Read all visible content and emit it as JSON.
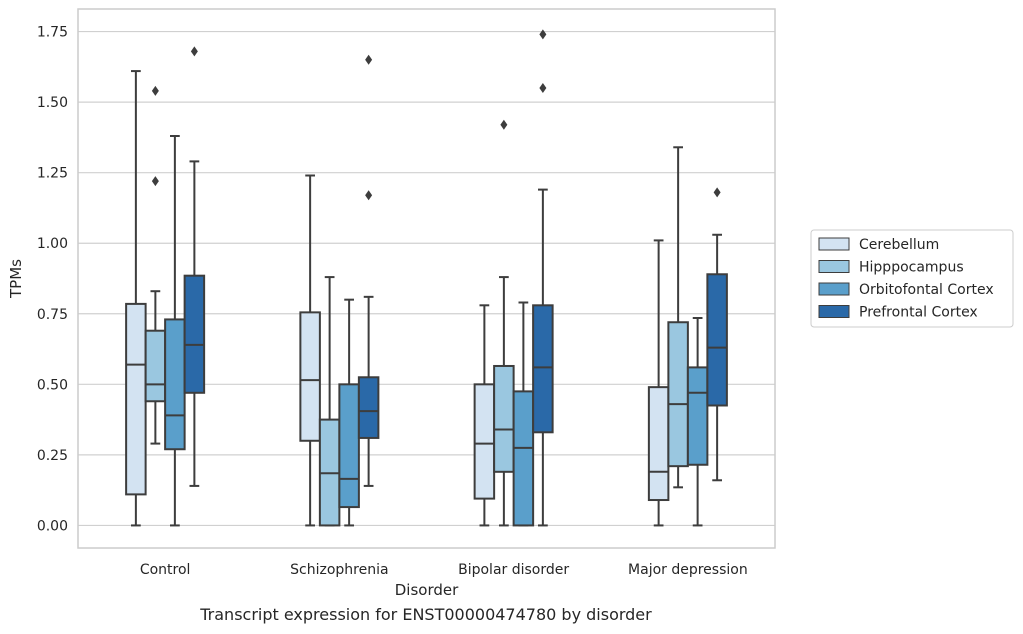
{
  "caption": "Transcript expression for ENST00000474780 by disorder",
  "chart_data": {
    "type": "box",
    "xlabel": "Disorder",
    "ylabel": "TPMs",
    "ylim": [
      -0.08,
      1.83
    ],
    "yticks": [
      0.0,
      0.25,
      0.5,
      0.75,
      1.0,
      1.25,
      1.5,
      1.75
    ],
    "ytick_labels": [
      "0.00",
      "0.25",
      "0.50",
      "0.75",
      "1.00",
      "1.25",
      "1.50",
      "1.75"
    ],
    "grid": "horizontal",
    "legend_position": "right",
    "categories": [
      "Control",
      "Schizophrenia",
      "Bipolar disorder",
      "Major depression"
    ],
    "series": [
      {
        "name": "Cerebellum",
        "color": "#d3e3f2",
        "boxes": [
          {
            "whisker_low": 0.0,
            "q1": 0.11,
            "median": 0.57,
            "q3": 0.785,
            "whisker_high": 1.61,
            "outliers": []
          },
          {
            "whisker_low": 0.0,
            "q1": 0.3,
            "median": 0.515,
            "q3": 0.755,
            "whisker_high": 1.24,
            "outliers": []
          },
          {
            "whisker_low": 0.0,
            "q1": 0.095,
            "median": 0.29,
            "q3": 0.5,
            "whisker_high": 0.78,
            "outliers": []
          },
          {
            "whisker_low": 0.0,
            "q1": 0.09,
            "median": 0.19,
            "q3": 0.49,
            "whisker_high": 1.01,
            "outliers": []
          }
        ]
      },
      {
        "name": "Hipppocampus",
        "color": "#9ac7e0",
        "boxes": [
          {
            "whisker_low": 0.29,
            "q1": 0.44,
            "median": 0.5,
            "q3": 0.69,
            "whisker_high": 0.83,
            "outliers": [
              1.22,
              1.54
            ]
          },
          {
            "whisker_low": 0.0,
            "q1": 0.0,
            "median": 0.185,
            "q3": 0.375,
            "whisker_high": 0.88,
            "outliers": []
          },
          {
            "whisker_low": 0.0,
            "q1": 0.19,
            "median": 0.34,
            "q3": 0.565,
            "whisker_high": 0.88,
            "outliers": [
              1.42
            ]
          },
          {
            "whisker_low": 0.135,
            "q1": 0.21,
            "median": 0.43,
            "q3": 0.72,
            "whisker_high": 1.34,
            "outliers": []
          }
        ]
      },
      {
        "name": "Orbitofontal Cortex",
        "color": "#5a9fcb",
        "boxes": [
          {
            "whisker_low": 0.0,
            "q1": 0.27,
            "median": 0.39,
            "q3": 0.73,
            "whisker_high": 1.38,
            "outliers": []
          },
          {
            "whisker_low": 0.0,
            "q1": 0.065,
            "median": 0.165,
            "q3": 0.5,
            "whisker_high": 0.8,
            "outliers": []
          },
          {
            "whisker_low": 0.0,
            "q1": 0.0,
            "median": 0.275,
            "q3": 0.475,
            "whisker_high": 0.79,
            "outliers": []
          },
          {
            "whisker_low": 0.0,
            "q1": 0.215,
            "median": 0.47,
            "q3": 0.56,
            "whisker_high": 0.735,
            "outliers": []
          }
        ]
      },
      {
        "name": "Prefrontal Cortex",
        "color": "#2a69a8",
        "boxes": [
          {
            "whisker_low": 0.14,
            "q1": 0.47,
            "median": 0.64,
            "q3": 0.885,
            "whisker_high": 1.29,
            "outliers": [
              1.68
            ]
          },
          {
            "whisker_low": 0.14,
            "q1": 0.31,
            "median": 0.405,
            "q3": 0.525,
            "whisker_high": 0.81,
            "outliers": [
              1.17,
              1.65
            ]
          },
          {
            "whisker_low": 0.0,
            "q1": 0.33,
            "median": 0.56,
            "q3": 0.78,
            "whisker_high": 1.19,
            "outliers": [
              1.55,
              1.74
            ]
          },
          {
            "whisker_low": 0.16,
            "q1": 0.425,
            "median": 0.63,
            "q3": 0.89,
            "whisker_high": 1.03,
            "outliers": [
              1.18
            ]
          }
        ]
      }
    ]
  }
}
